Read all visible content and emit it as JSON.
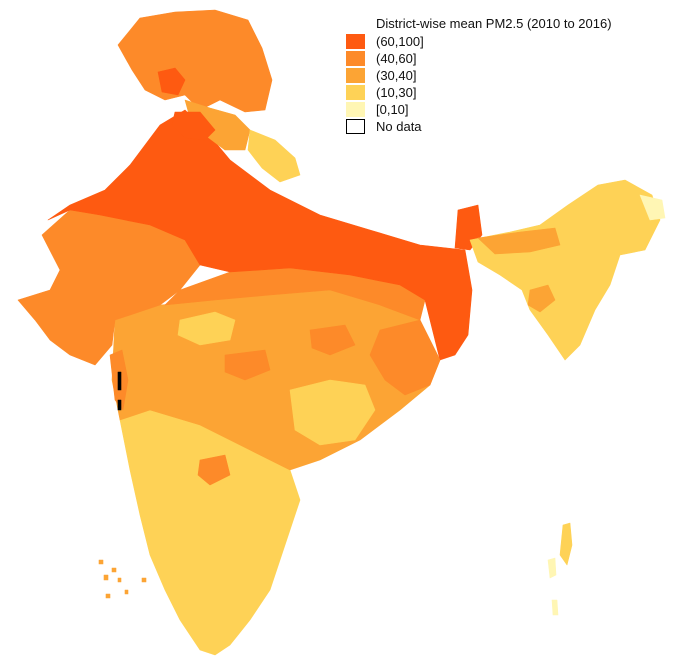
{
  "map": {
    "legend": {
      "title": "District-wise mean PM2.5 (2010 to 2016)",
      "classes": [
        {
          "label": "(60,100]",
          "color": "#fe5a11"
        },
        {
          "label": "(40,60]",
          "color": "#fd8a29"
        },
        {
          "label": "(30,40]",
          "color": "#fca434"
        },
        {
          "label": "(10,30]",
          "color": "#fed256"
        },
        {
          "label": "[0,10]",
          "color": "#fff6b4"
        },
        {
          "label": "No data",
          "color": "#ffffff",
          "border": "#000000"
        }
      ]
    },
    "colors": {
      "c60": "#fe5a11",
      "c40": "#fd8a29",
      "c30": "#fca434",
      "c10": "#fed256",
      "c0": "#fff6b4",
      "nodata": "#000000"
    }
  }
}
